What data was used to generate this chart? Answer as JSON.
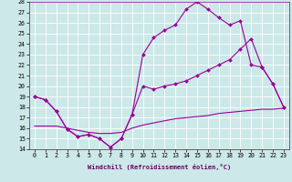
{
  "xlabel": "Windchill (Refroidissement éolien,°C)",
  "line_color": "#990099",
  "marker": "D",
  "marker_size": 2,
  "bg_color": "#cce8e8",
  "grid_color": "#ffffff",
  "xlim": [
    -0.5,
    23.5
  ],
  "ylim": [
    14,
    28
  ],
  "xticks": [
    0,
    1,
    2,
    3,
    4,
    5,
    6,
    7,
    8,
    9,
    10,
    11,
    12,
    13,
    14,
    15,
    16,
    17,
    18,
    19,
    20,
    21,
    22,
    23
  ],
  "yticks": [
    14,
    15,
    16,
    17,
    18,
    19,
    20,
    21,
    22,
    23,
    24,
    25,
    26,
    27,
    28
  ],
  "line1_x": [
    0,
    1,
    2,
    3,
    4,
    5,
    6,
    7,
    8,
    9,
    10,
    11,
    12,
    13,
    14,
    15,
    16,
    17,
    18,
    19,
    20,
    21,
    22,
    23
  ],
  "line1_y": [
    19.0,
    18.7,
    17.6,
    15.9,
    15.2,
    15.4,
    15.0,
    14.2,
    15.0,
    17.3,
    23.0,
    24.6,
    25.3,
    25.8,
    27.3,
    28.0,
    27.3,
    26.5,
    25.8,
    26.2,
    22.0,
    21.8,
    20.2,
    18.0
  ],
  "line2_x": [
    0,
    1,
    2,
    3,
    4,
    5,
    6,
    7,
    8,
    9,
    10,
    11,
    12,
    13,
    14,
    15,
    16,
    17,
    18,
    19,
    20,
    21,
    22,
    23
  ],
  "line2_y": [
    19.0,
    18.7,
    17.6,
    15.9,
    15.2,
    15.4,
    15.0,
    14.2,
    15.0,
    17.3,
    20.0,
    19.7,
    20.0,
    20.2,
    20.5,
    21.0,
    21.5,
    22.0,
    22.5,
    23.5,
    24.5,
    21.8,
    20.2,
    18.0
  ],
  "line3_x": [
    0,
    1,
    2,
    3,
    4,
    5,
    6,
    7,
    8,
    9,
    10,
    11,
    12,
    13,
    14,
    15,
    16,
    17,
    18,
    19,
    20,
    21,
    22,
    23
  ],
  "line3_y": [
    16.2,
    16.2,
    16.2,
    16.0,
    15.8,
    15.6,
    15.5,
    15.5,
    15.6,
    16.0,
    16.3,
    16.5,
    16.7,
    16.9,
    17.0,
    17.1,
    17.2,
    17.4,
    17.5,
    17.6,
    17.7,
    17.8,
    17.8,
    17.9
  ],
  "xlabel_fontsize": 5,
  "tick_fontsize": 4.8
}
